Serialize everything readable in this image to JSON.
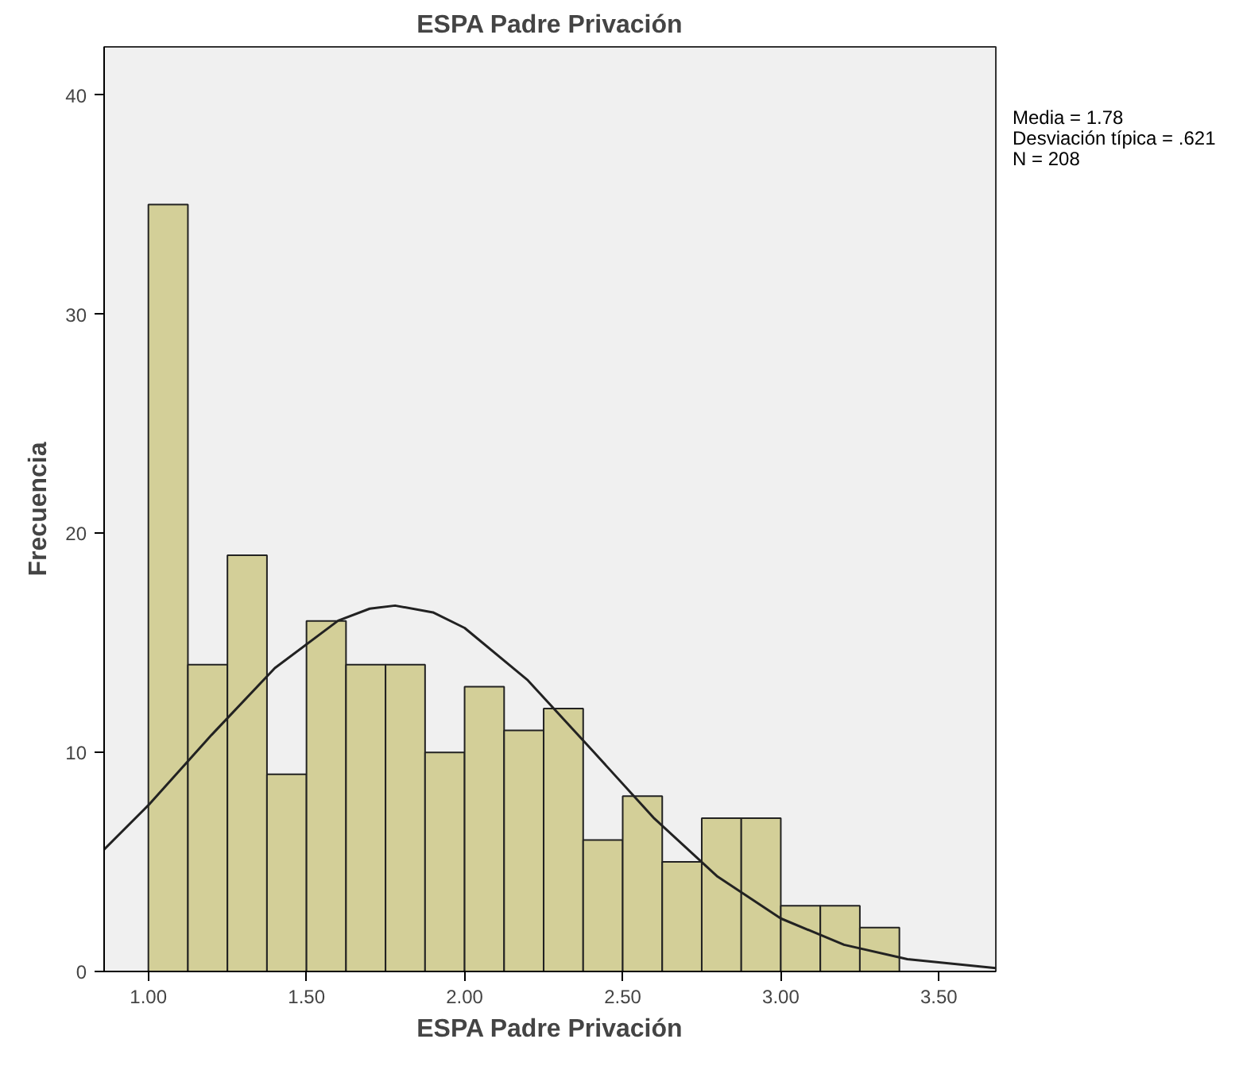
{
  "chart_data": {
    "type": "histogram",
    "title": "ESPA Padre Privación",
    "xlabel": "ESPA Padre Privación",
    "ylabel": "Frecuencia",
    "bins": [
      1.0,
      1.125,
      1.25,
      1.375,
      1.5,
      1.625,
      1.75,
      1.875,
      2.0,
      2.125,
      2.25,
      2.375,
      2.5,
      2.625,
      2.75,
      2.875,
      3.0,
      3.125,
      3.25,
      3.375
    ],
    "values": [
      35,
      14,
      19,
      9,
      16,
      14,
      14,
      10,
      13,
      11,
      12,
      6,
      8,
      5,
      7,
      7,
      3,
      3,
      2
    ],
    "color": "#d3cf98",
    "series": [
      {
        "type": "line",
        "color": "#222222",
        "x": [
          0.86,
          1.0,
          1.2,
          1.4,
          1.6,
          1.7,
          1.78,
          1.9,
          2.0,
          2.2,
          2.4,
          2.6,
          2.8,
          3.0,
          3.2,
          3.4,
          3.68
        ],
        "values": [
          5.57,
          7.59,
          10.8,
          13.85,
          16.01,
          16.56,
          16.7,
          16.39,
          15.68,
          13.29,
          10.15,
          6.98,
          4.33,
          2.42,
          1.22,
          0.56,
          0.15
        ]
      }
    ],
    "xlim": [
      0.86,
      3.68
    ],
    "ylim": [
      0,
      42.2
    ],
    "xticks": [
      {
        "value": 1.0,
        "label": "1.00"
      },
      {
        "value": 1.5,
        "label": "1.50"
      },
      {
        "value": 2.0,
        "label": "2.00"
      },
      {
        "value": 2.5,
        "label": "2.50"
      },
      {
        "value": 3.0,
        "label": "3.00"
      },
      {
        "value": 3.5,
        "label": "3.50"
      }
    ],
    "yticks": [
      0,
      10,
      20,
      30,
      40
    ],
    "annotations": [
      "Media = 1.78",
      "Desviación típica = .621",
      "N = 208"
    ],
    "grid": false
  }
}
